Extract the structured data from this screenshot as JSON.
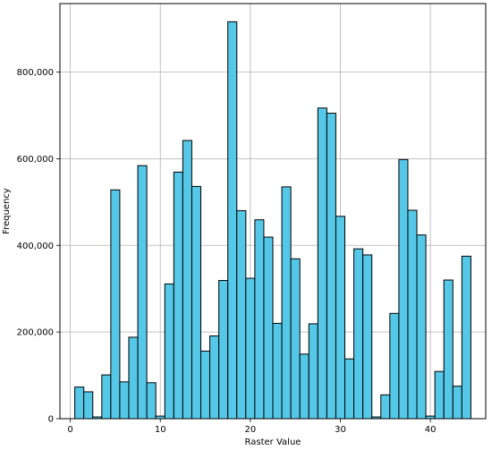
{
  "chart_data": {
    "type": "bar",
    "title": "",
    "xlabel": "Raster Value",
    "ylabel": "Frequency",
    "xlim": [
      -1.15,
      46.15
    ],
    "ylim": [
      0,
      958000
    ],
    "grid": true,
    "bar_color": "#55c8e8",
    "edge_color": "#000000",
    "grid_color": "#b0b0b0",
    "bin_width": 1.0,
    "x_ticks": [
      {
        "value": 0,
        "label": "0"
      },
      {
        "value": 10,
        "label": "10"
      },
      {
        "value": 20,
        "label": "20"
      },
      {
        "value": 30,
        "label": "30"
      },
      {
        "value": 40,
        "label": "40"
      }
    ],
    "y_ticks": [
      {
        "value": 0,
        "label": "0"
      },
      {
        "value": 200000,
        "label": "200,000"
      },
      {
        "value": 400000,
        "label": "400,000"
      },
      {
        "value": 600000,
        "label": "600,000"
      },
      {
        "value": 800000,
        "label": "800,000"
      }
    ],
    "x": [
      1,
      2,
      3,
      4,
      5,
      6,
      7,
      8,
      9,
      10,
      11,
      12,
      13,
      14,
      15,
      16,
      17,
      18,
      19,
      20,
      21,
      22,
      23,
      24,
      25,
      26,
      27,
      28,
      29,
      30,
      31,
      32,
      33,
      34,
      35,
      36,
      37,
      38,
      39,
      40,
      41,
      42,
      43,
      44
    ],
    "values": [
      73000,
      62000,
      4000,
      101000,
      528000,
      85000,
      188000,
      584000,
      83000,
      6000,
      311000,
      569000,
      642000,
      536000,
      156000,
      191000,
      319000,
      916000,
      480000,
      324000,
      459000,
      419000,
      220000,
      535000,
      369000,
      149000,
      219000,
      717000,
      705000,
      467000,
      138000,
      392000,
      378000,
      4000,
      55000,
      243000,
      598000,
      481000,
      424000,
      6000,
      109000,
      320000,
      75000,
      375000
    ]
  }
}
